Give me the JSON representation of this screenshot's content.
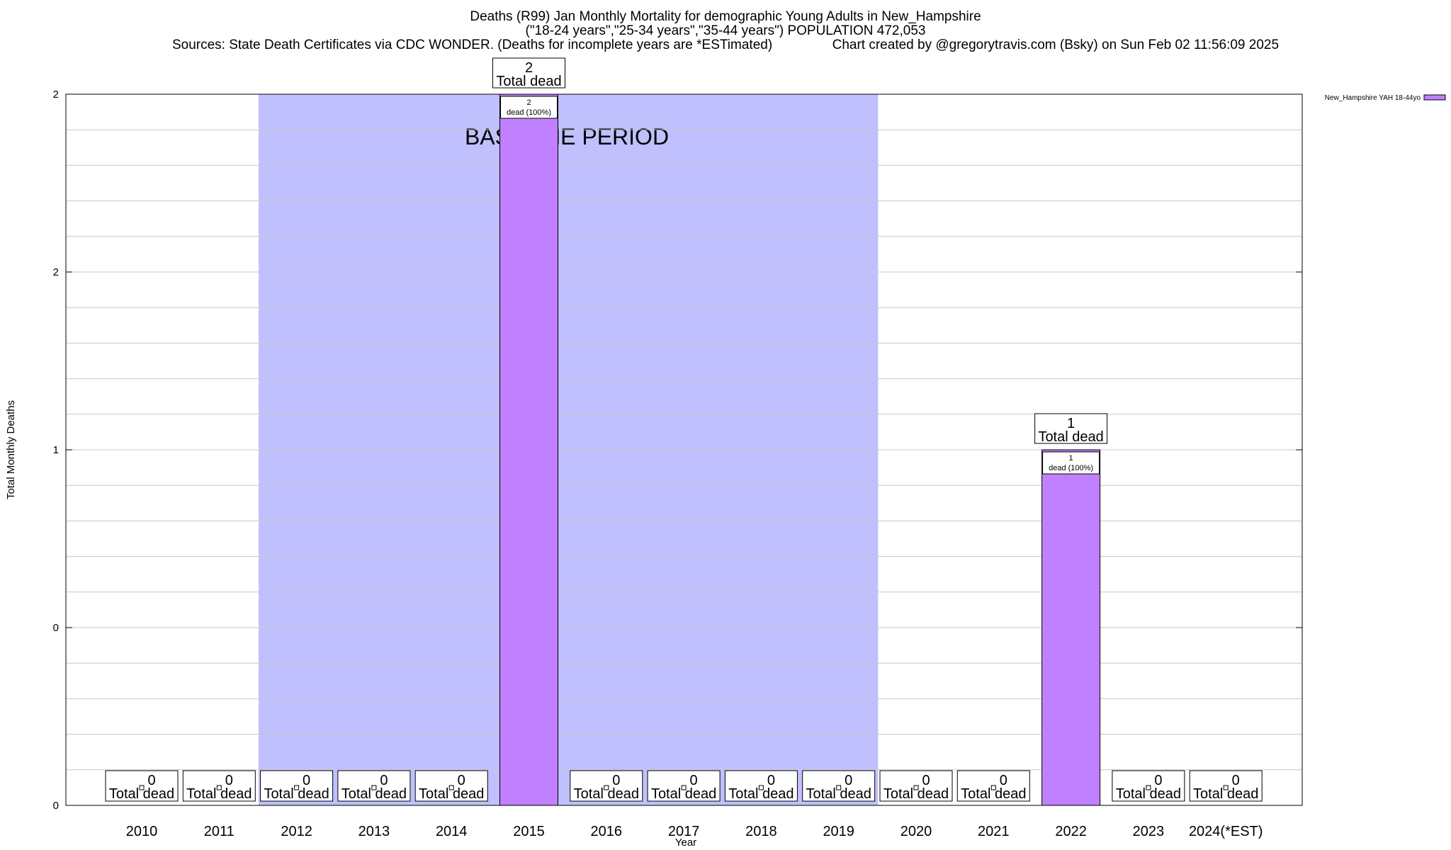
{
  "header": {
    "title_line1": "Deaths (R99) Jan Monthly Mortality for demographic Young Adults in New_Hampshire",
    "title_line2": "(\"18-24 years\",\"25-34 years\",\"35-44 years\") POPULATION 472,053",
    "title_line3": "Sources: State Death Certificates via CDC WONDER. (Deaths for incomplete years are *ESTimated)                Chart created by @gregorytravis.com (Bsky) on Sun Feb 02 11:56:09 2025"
  },
  "colors": {
    "bar": "#c080ff",
    "baseline_band": "#c0c0ff",
    "grid": "#c8c8c8"
  },
  "chart_data": {
    "type": "bar",
    "xlabel": "Year",
    "ylabel": "Total Monthly Deaths",
    "ylim": [
      0,
      2
    ],
    "yticks": [
      {
        "value": 0,
        "label": "0"
      },
      {
        "value": 0.5,
        "label": "0"
      },
      {
        "value": 1,
        "label": "1"
      },
      {
        "value": 1.5,
        "label": "2"
      },
      {
        "value": 2,
        "label": "2"
      }
    ],
    "categories": [
      "2010",
      "2011",
      "2012",
      "2013",
      "2014",
      "2015",
      "2016",
      "2017",
      "2018",
      "2019",
      "2020",
      "2021",
      "2022",
      "2023",
      "2024(*EST)"
    ],
    "series": [
      {
        "name": "New_Hampshire YAH 18-44yo",
        "values": [
          0,
          0,
          0,
          0,
          0,
          2,
          0,
          0,
          0,
          0,
          0,
          0,
          1,
          0,
          0
        ]
      }
    ],
    "total_label_word": "Total dead",
    "bar_label_word": "dead (100%)",
    "baseline": {
      "label": "BASELINE PERIOD",
      "from": "2012",
      "to": "2019"
    },
    "legend": "top-right",
    "grid": true
  }
}
